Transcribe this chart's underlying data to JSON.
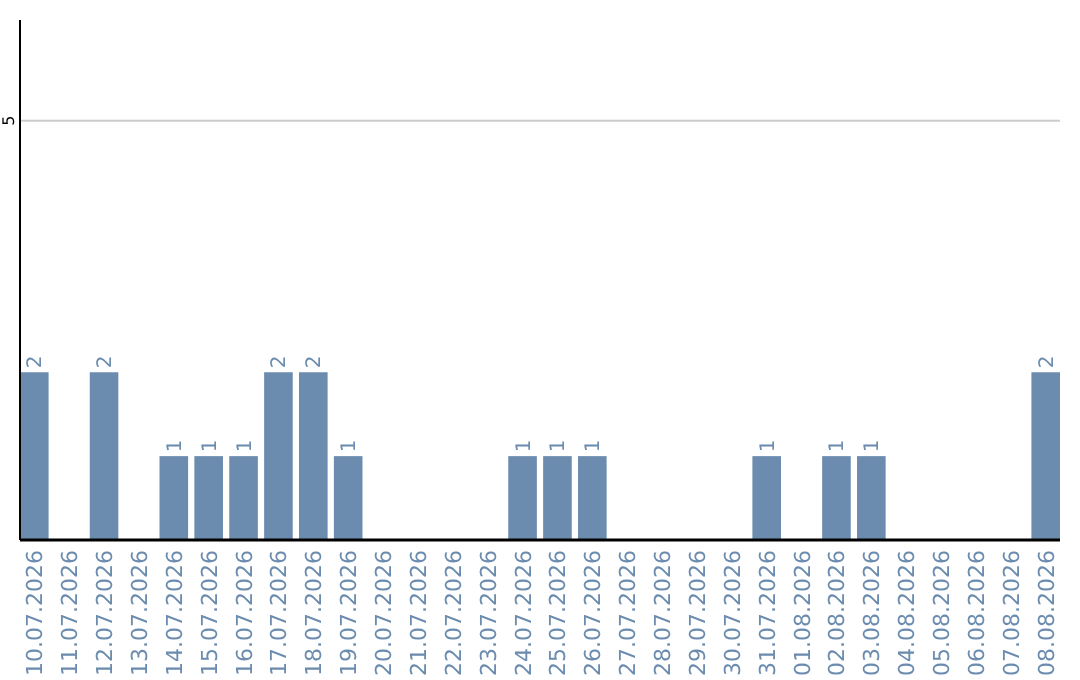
{
  "chart_data": {
    "type": "bar",
    "categories": [
      "10.07.2026",
      "11.07.2026",
      "12.07.2026",
      "13.07.2026",
      "14.07.2026",
      "15.07.2026",
      "16.07.2026",
      "17.07.2026",
      "18.07.2026",
      "19.07.2026",
      "20.07.2026",
      "21.07.2026",
      "22.07.2026",
      "23.07.2026",
      "24.07.2026",
      "25.07.2026",
      "26.07.2026",
      "27.07.2026",
      "28.07.2026",
      "29.07.2026",
      "30.07.2026",
      "31.07.2026",
      "01.08.2026",
      "02.08.2026",
      "03.08.2026",
      "04.08.2026",
      "05.08.2026",
      "06.08.2026",
      "07.08.2026",
      "08.08.2026"
    ],
    "values": [
      2,
      0,
      2,
      0,
      1,
      1,
      1,
      2,
      2,
      1,
      0,
      0,
      0,
      0,
      1,
      1,
      1,
      0,
      0,
      0,
      0,
      1,
      0,
      1,
      1,
      0,
      0,
      0,
      0,
      2
    ],
    "value_labels": [
      "2",
      null,
      "2",
      null,
      "1",
      "1",
      "1",
      "2",
      "2",
      "1",
      null,
      null,
      null,
      null,
      "1",
      "1",
      "1",
      null,
      null,
      null,
      null,
      "1",
      null,
      "1",
      "1",
      null,
      null,
      null,
      null,
      "2"
    ],
    "color": "#6b8cae",
    "ylim": [
      0,
      6.2
    ],
    "yticks": [
      5
    ],
    "grid": "y"
  }
}
